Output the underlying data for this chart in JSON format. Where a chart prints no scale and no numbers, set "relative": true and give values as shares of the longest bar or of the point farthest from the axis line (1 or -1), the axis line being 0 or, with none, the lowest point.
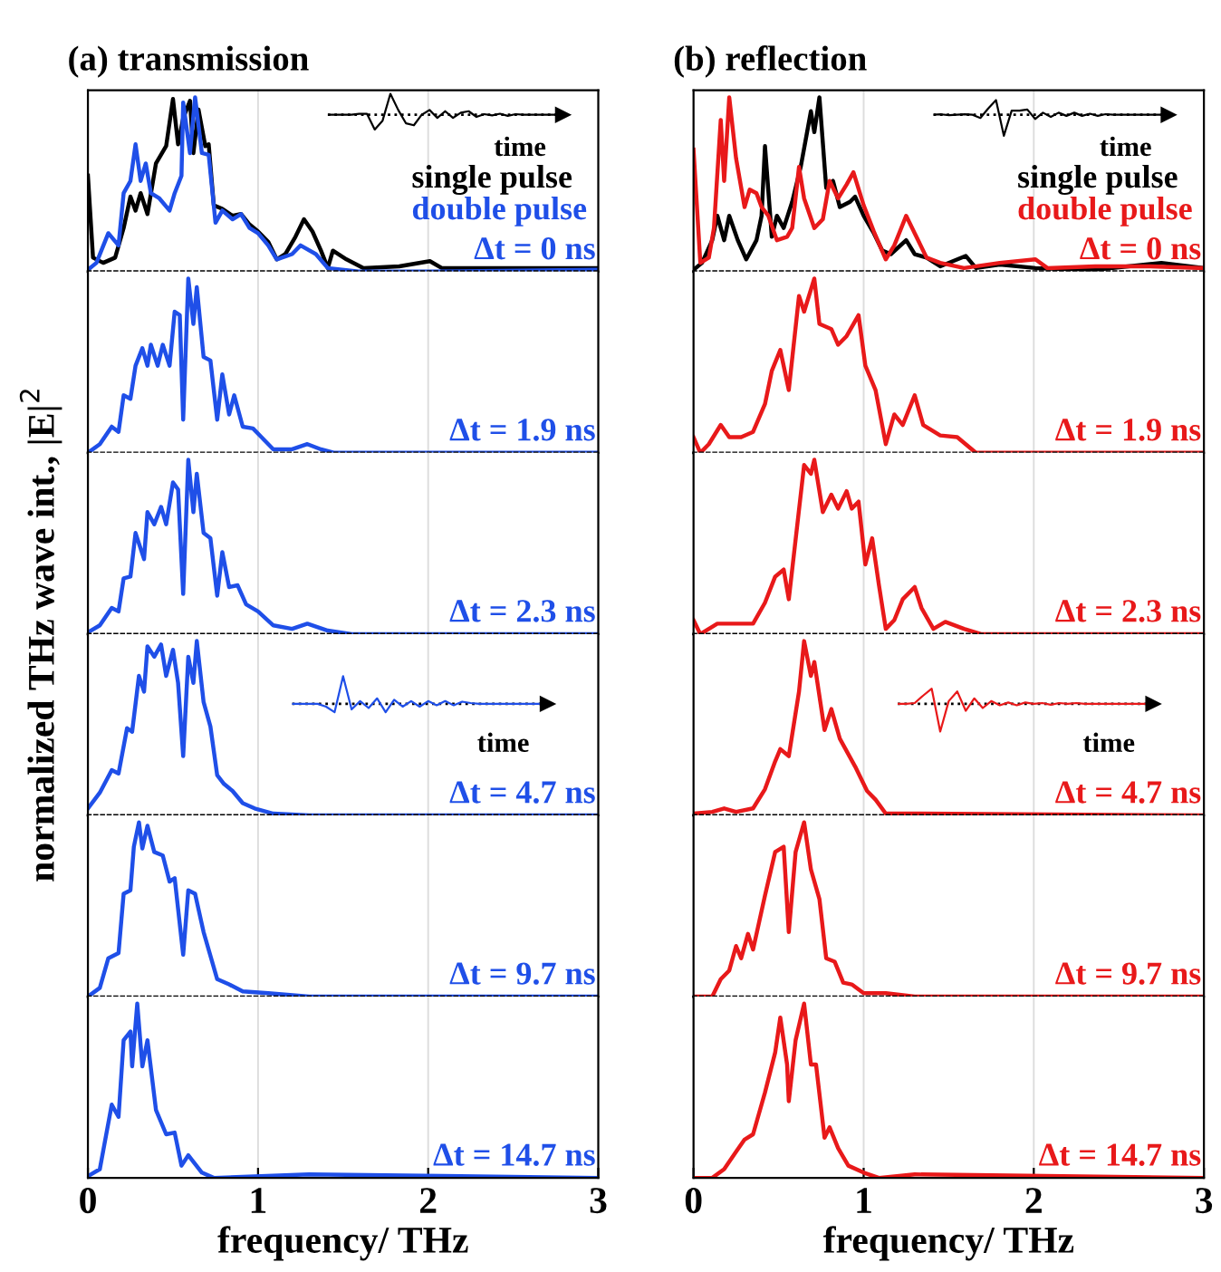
{
  "chart_data": [
    {
      "type": "line",
      "title": "(a) transmission",
      "relative": true,
      "xlim": [
        0,
        3
      ],
      "xticks": [
        0,
        1,
        2,
        3
      ],
      "grid": "x",
      "tick_labels": false,
      "legend": "right",
      "annotations": [
        "Δt = 0 ns"
      ],
      "series": [
        {
          "name": "single pulse",
          "color": "#000000",
          "x": [
            0,
            0.03,
            0.09,
            0.16,
            0.21,
            0.25,
            0.28,
            0.31,
            0.35,
            0.4,
            0.46,
            0.5,
            0.53,
            0.56,
            0.6,
            0.62,
            0.65,
            0.69,
            0.71,
            0.74,
            0.79,
            0.85,
            0.9,
            0.95,
            1.0,
            1.06,
            1.11,
            1.16,
            1.22,
            1.27,
            1.32,
            1.37,
            1.41,
            1.44,
            1.52,
            1.62,
            1.83,
            2.01,
            2.08,
            2.36,
            2.71,
            3.0
          ],
          "values": [
            0.55,
            0.08,
            0.05,
            0.08,
            0.25,
            0.43,
            0.35,
            0.45,
            0.33,
            0.62,
            0.72,
            0.99,
            0.73,
            0.88,
            0.98,
            0.68,
            0.93,
            0.72,
            0.73,
            0.38,
            0.36,
            0.32,
            0.33,
            0.27,
            0.23,
            0.17,
            0.07,
            0.1,
            0.2,
            0.3,
            0.23,
            0.12,
            0.02,
            0.12,
            0.07,
            0.02,
            0.03,
            0.06,
            0.02,
            0.02,
            0.02,
            0.02
          ]
        },
        {
          "name": "double pulse",
          "color": "#1f4fe8",
          "x": [
            0,
            0.05,
            0.12,
            0.18,
            0.21,
            0.25,
            0.28,
            0.31,
            0.34,
            0.37,
            0.42,
            0.48,
            0.51,
            0.55,
            0.56,
            0.6,
            0.63,
            0.67,
            0.71,
            0.75,
            0.79,
            0.85,
            0.9,
            0.95,
            1.0,
            1.06,
            1.11,
            1.2,
            1.25,
            1.34,
            1.41,
            1.59,
            2.01,
            3.0
          ],
          "values": [
            0.01,
            0.05,
            0.22,
            0.15,
            0.45,
            0.52,
            0.73,
            0.52,
            0.62,
            0.45,
            0.42,
            0.35,
            0.45,
            0.55,
            0.97,
            0.68,
            1.0,
            0.68,
            0.67,
            0.28,
            0.35,
            0.3,
            0.33,
            0.25,
            0.22,
            0.15,
            0.07,
            0.1,
            0.15,
            0.1,
            0.02,
            0.0,
            0.0,
            0.01
          ]
        }
      ]
    },
    {
      "type": "line",
      "relative": true,
      "xlabel": "time",
      "categories": [
        null,
        null,
        null,
        null,
        null,
        null,
        null,
        null,
        null,
        null,
        null,
        null,
        null,
        null,
        null,
        null,
        null,
        null,
        null,
        null,
        null,
        null,
        null,
        null,
        null,
        null,
        null,
        null,
        null,
        null,
        null
      ],
      "ref_lines": [
        {
          "axis": "y",
          "value": 0,
          "color": "#000000",
          "line_style": "dotted"
        }
      ],
      "series": [
        {
          "color": "#000000",
          "values": [
            0,
            0,
            0,
            0,
            0.05,
            0.05,
            -0.7,
            -0.28,
            1.0,
            0.23,
            -0.41,
            -0.5,
            0,
            0.23,
            -0.15,
            0.17,
            -0.15,
            0.1,
            0.17,
            -0.1,
            0.03,
            -0.03,
            0.05,
            -0.05,
            0.03,
            0,
            0,
            0,
            0,
            0,
            0
          ]
        }
      ]
    },
    {
      "type": "line",
      "relative": true,
      "xlim": [
        0,
        3
      ],
      "xticks": [
        0,
        1,
        2,
        3
      ],
      "grid": "x",
      "tick_labels": false,
      "annotations": [
        "Δt = 1.9 ns"
      ],
      "series": [
        {
          "color": "#1f4fe8",
          "x": [
            0,
            0.07,
            0.14,
            0.18,
            0.21,
            0.25,
            0.28,
            0.32,
            0.35,
            0.37,
            0.41,
            0.44,
            0.48,
            0.51,
            0.54,
            0.56,
            0.59,
            0.62,
            0.64,
            0.68,
            0.72,
            0.76,
            0.79,
            0.83,
            0.86,
            0.91,
            0.97,
            1.02,
            1.09,
            1.2,
            1.29,
            1.37,
            1.45,
            3.0
          ],
          "values": [
            0,
            0.05,
            0.15,
            0.12,
            0.33,
            0.31,
            0.5,
            0.6,
            0.5,
            0.62,
            0.5,
            0.62,
            0.5,
            0.81,
            0.79,
            0.19,
            1.0,
            0.74,
            0.95,
            0.55,
            0.53,
            0.19,
            0.45,
            0.22,
            0.33,
            0.15,
            0.14,
            0.09,
            0.02,
            0.02,
            0.05,
            0.02,
            0,
            0
          ]
        }
      ]
    },
    {
      "type": "line",
      "relative": true,
      "xlim": [
        0,
        3
      ],
      "xticks": [
        0,
        1,
        2,
        3
      ],
      "grid": "x",
      "tick_labels": false,
      "ylabel": "normalized THz wave int., |E|$^{2}$",
      "annotations": [
        "Δt = 2.3 ns"
      ],
      "series": [
        {
          "color": "#1f4fe8",
          "x": [
            0,
            0.07,
            0.14,
            0.18,
            0.21,
            0.25,
            0.28,
            0.33,
            0.35,
            0.39,
            0.43,
            0.46,
            0.5,
            0.53,
            0.56,
            0.59,
            0.62,
            0.64,
            0.68,
            0.72,
            0.76,
            0.79,
            0.83,
            0.88,
            0.93,
            1.0,
            1.09,
            1.2,
            1.29,
            1.41,
            1.55,
            3.0
          ],
          "values": [
            0.01,
            0.05,
            0.15,
            0.13,
            0.32,
            0.33,
            0.58,
            0.43,
            0.7,
            0.63,
            0.73,
            0.63,
            0.87,
            0.83,
            0.23,
            1.0,
            0.7,
            0.92,
            0.58,
            0.55,
            0.22,
            0.47,
            0.27,
            0.28,
            0.17,
            0.13,
            0.05,
            0.03,
            0.06,
            0.02,
            0,
            0
          ]
        }
      ]
    },
    {
      "type": "line",
      "relative": true,
      "xlim": [
        0,
        3
      ],
      "xticks": [
        0,
        1,
        2,
        3
      ],
      "grid": "x",
      "tick_labels": false,
      "annotations": [
        "Δt = 4.7 ns"
      ],
      "series": [
        {
          "color": "#1f4fe8",
          "x": [
            0,
            0.07,
            0.14,
            0.18,
            0.23,
            0.26,
            0.3,
            0.33,
            0.35,
            0.39,
            0.43,
            0.46,
            0.5,
            0.53,
            0.56,
            0.59,
            0.62,
            0.64,
            0.68,
            0.72,
            0.76,
            0.8,
            0.85,
            0.91,
            0.98,
            1.09,
            1.3,
            3.0
          ],
          "values": [
            0.04,
            0.13,
            0.26,
            0.24,
            0.5,
            0.48,
            0.8,
            0.71,
            0.97,
            0.91,
            0.98,
            0.8,
            0.95,
            0.76,
            0.34,
            0.91,
            0.76,
            1.0,
            0.65,
            0.51,
            0.23,
            0.18,
            0.14,
            0.07,
            0.04,
            0.01,
            0,
            0
          ]
        }
      ]
    },
    {
      "type": "line",
      "relative": true,
      "xlabel": "time",
      "categories": [
        null,
        null,
        null,
        null,
        null,
        null,
        null,
        null,
        null,
        null,
        null,
        null,
        null,
        null,
        null,
        null,
        null,
        null,
        null,
        null,
        null,
        null,
        null,
        null,
        null,
        null,
        null,
        null,
        null,
        null,
        null
      ],
      "ref_lines": [
        {
          "axis": "y",
          "value": 0,
          "color": "#000000",
          "line_style": "dotted"
        }
      ],
      "series": [
        {
          "color": "#1f4fe8",
          "values": [
            0,
            0,
            0,
            0,
            -0.1,
            -0.3,
            1.0,
            -0.2,
            0.1,
            -0.15,
            0.2,
            -0.3,
            0.15,
            -0.1,
            0.1,
            -0.1,
            0.1,
            -0.05,
            0.1,
            -0.05,
            0.08,
            0.03,
            0,
            0,
            0,
            0,
            0,
            0,
            0,
            0,
            0
          ]
        }
      ]
    },
    {
      "type": "line",
      "relative": true,
      "xlim": [
        0,
        3
      ],
      "xticks": [
        0,
        1,
        2,
        3
      ],
      "grid": "x",
      "tick_labels": false,
      "annotations": [
        "Δt = 9.7 ns"
      ],
      "series": [
        {
          "color": "#1f4fe8",
          "x": [
            0,
            0.07,
            0.12,
            0.18,
            0.21,
            0.25,
            0.27,
            0.3,
            0.32,
            0.35,
            0.39,
            0.44,
            0.48,
            0.51,
            0.56,
            0.59,
            0.63,
            0.68,
            0.76,
            0.83,
            0.91,
            1.06,
            1.3,
            3.0
          ],
          "values": [
            0,
            0.05,
            0.22,
            0.25,
            0.59,
            0.61,
            0.86,
            1.0,
            0.85,
            0.98,
            0.83,
            0.81,
            0.66,
            0.68,
            0.24,
            0.61,
            0.59,
            0.37,
            0.1,
            0.07,
            0.03,
            0.02,
            0,
            0
          ]
        }
      ]
    },
    {
      "type": "line",
      "relative": true,
      "xlim": [
        0,
        3
      ],
      "xticks": [
        0,
        1,
        2,
        3
      ],
      "grid": "x",
      "tick_labels": "x",
      "xlabel": "frequency/ THz",
      "annotations": [
        "Δt = 14.7 ns"
      ],
      "series": [
        {
          "color": "#1f4fe8",
          "x": [
            0,
            0.07,
            0.14,
            0.18,
            0.21,
            0.25,
            0.26,
            0.29,
            0.32,
            0.35,
            0.4,
            0.46,
            0.51,
            0.55,
            0.59,
            0.67,
            0.74,
            1.3,
            3.0
          ],
          "values": [
            0.01,
            0.05,
            0.42,
            0.35,
            0.79,
            0.84,
            0.64,
            1.0,
            0.64,
            0.79,
            0.39,
            0.25,
            0.26,
            0.07,
            0.13,
            0.03,
            0,
            0.02,
            0
          ]
        }
      ]
    },
    {
      "type": "line",
      "title": "(b) reflection",
      "relative": true,
      "xlim": [
        0,
        3
      ],
      "xticks": [
        0,
        1,
        2,
        3
      ],
      "grid": "x",
      "tick_labels": false,
      "legend": "right",
      "annotations": [
        "Δt = 0 ns"
      ],
      "series": [
        {
          "name": "single pulse",
          "color": "#000000",
          "x": [
            0,
            0.05,
            0.11,
            0.14,
            0.18,
            0.21,
            0.26,
            0.31,
            0.37,
            0.4,
            0.42,
            0.46,
            0.49,
            0.53,
            0.58,
            0.63,
            0.69,
            0.71,
            0.74,
            0.78,
            0.82,
            0.86,
            0.92,
            0.95,
            1.0,
            1.06,
            1.11,
            1.16,
            1.25,
            1.3,
            1.37,
            1.45,
            1.6,
            1.66,
            1.8,
            2.01,
            2.36,
            2.75,
            3.0
          ],
          "values": [
            0.01,
            0.05,
            0.18,
            0.32,
            0.18,
            0.32,
            0.18,
            0.07,
            0.18,
            0.32,
            0.72,
            0.2,
            0.32,
            0.25,
            0.4,
            0.6,
            0.92,
            0.8,
            1.0,
            0.48,
            0.52,
            0.37,
            0.4,
            0.43,
            0.32,
            0.22,
            0.12,
            0.1,
            0.18,
            0.1,
            0.08,
            0.03,
            0.09,
            0.02,
            0.04,
            0.02,
            0.01,
            0.05,
            0.02
          ]
        },
        {
          "name": "double pulse",
          "color": "#e8191a",
          "x": [
            0,
            0.04,
            0.09,
            0.12,
            0.16,
            0.18,
            0.21,
            0.25,
            0.3,
            0.33,
            0.37,
            0.4,
            0.44,
            0.49,
            0.55,
            0.58,
            0.62,
            0.65,
            0.71,
            0.76,
            0.8,
            0.85,
            0.9,
            0.94,
            1.0,
            1.06,
            1.13,
            1.18,
            1.25,
            1.3,
            1.37,
            1.45,
            1.59,
            1.8,
            2.01,
            2.08,
            2.36,
            2.68,
            3.0
          ],
          "values": [
            0.7,
            0.05,
            0.08,
            0.25,
            0.87,
            0.52,
            1.0,
            0.65,
            0.37,
            0.47,
            0.45,
            0.37,
            0.32,
            0.18,
            0.2,
            0.25,
            0.6,
            0.42,
            0.25,
            0.3,
            0.52,
            0.42,
            0.5,
            0.57,
            0.38,
            0.23,
            0.07,
            0.15,
            0.32,
            0.22,
            0.08,
            0.05,
            0.02,
            0.05,
            0.07,
            0.02,
            0.03,
            0.03,
            0.02
          ]
        }
      ]
    },
    {
      "type": "line",
      "relative": true,
      "xlabel": "time",
      "categories": [
        null,
        null,
        null,
        null,
        null,
        null,
        null,
        null,
        null,
        null,
        null,
        null,
        null,
        null,
        null,
        null,
        null,
        null,
        null,
        null,
        null,
        null,
        null,
        null,
        null,
        null,
        null,
        null,
        null,
        null,
        null
      ],
      "ref_lines": [
        {
          "axis": "y",
          "value": 0,
          "color": "#000000",
          "line_style": "dotted"
        }
      ],
      "series": [
        {
          "color": "#000000",
          "values": [
            0,
            0.02,
            -0.02,
            0,
            0.02,
            0,
            -0.15,
            0.3,
            0.7,
            -1.0,
            0.2,
            0.2,
            0.25,
            -0.2,
            0.1,
            -0.1,
            0.1,
            -0.05,
            0.1,
            -0.05,
            0.05,
            -0.05,
            0.03,
            0,
            0,
            0,
            0,
            0,
            0,
            0,
            0
          ]
        }
      ]
    },
    {
      "type": "line",
      "relative": true,
      "xlim": [
        0,
        3
      ],
      "xticks": [
        0,
        1,
        2,
        3
      ],
      "grid": "x",
      "tick_labels": false,
      "annotations": [
        "Δt = 1.9 ns"
      ],
      "series": [
        {
          "color": "#e8191a",
          "x": [
            0,
            0.04,
            0.09,
            0.16,
            0.21,
            0.28,
            0.35,
            0.42,
            0.46,
            0.51,
            0.56,
            0.62,
            0.65,
            0.71,
            0.74,
            0.81,
            0.85,
            0.9,
            0.97,
            1.01,
            1.07,
            1.13,
            1.18,
            1.23,
            1.3,
            1.35,
            1.45,
            1.55,
            1.66,
            3.0
          ],
          "values": [
            0.09,
            0,
            0.05,
            0.16,
            0.09,
            0.09,
            0.12,
            0.28,
            0.47,
            0.59,
            0.36,
            0.9,
            0.81,
            1.0,
            0.74,
            0.71,
            0.62,
            0.67,
            0.79,
            0.5,
            0.36,
            0.05,
            0.22,
            0.16,
            0.33,
            0.16,
            0.1,
            0.09,
            0,
            0
          ]
        }
      ]
    },
    {
      "type": "line",
      "relative": true,
      "xlim": [
        0,
        3
      ],
      "xticks": [
        0,
        1,
        2,
        3
      ],
      "grid": "x",
      "tick_labels": false,
      "annotations": [
        "Δt = 2.3 ns"
      ],
      "series": [
        {
          "color": "#e8191a",
          "x": [
            0,
            0.04,
            0.14,
            0.28,
            0.35,
            0.42,
            0.48,
            0.53,
            0.56,
            0.65,
            0.69,
            0.71,
            0.76,
            0.81,
            0.85,
            0.9,
            0.93,
            0.97,
            1.01,
            1.05,
            1.09,
            1.13,
            1.18,
            1.23,
            1.3,
            1.34,
            1.41,
            1.48,
            1.59,
            1.69,
            3.0
          ],
          "values": [
            0.08,
            0,
            0.06,
            0.06,
            0.06,
            0.18,
            0.33,
            0.37,
            0.2,
            0.97,
            0.92,
            1.0,
            0.7,
            0.8,
            0.72,
            0.82,
            0.72,
            0.76,
            0.4,
            0.55,
            0.28,
            0.03,
            0.08,
            0.2,
            0.27,
            0.15,
            0.03,
            0.07,
            0.03,
            0,
            0
          ]
        }
      ]
    },
    {
      "type": "line",
      "relative": true,
      "xlim": [
        0,
        3
      ],
      "xticks": [
        0,
        1,
        2,
        3
      ],
      "grid": "x",
      "tick_labels": false,
      "annotations": [
        "Δt = 4.7 ns"
      ],
      "series": [
        {
          "color": "#e8191a",
          "x": [
            0,
            0.11,
            0.18,
            0.25,
            0.35,
            0.42,
            0.48,
            0.51,
            0.56,
            0.62,
            0.65,
            0.69,
            0.71,
            0.77,
            0.81,
            0.86,
            0.95,
            1.02,
            1.07,
            1.13,
            1.3,
            3.0
          ],
          "values": [
            0.01,
            0.02,
            0.04,
            0.02,
            0.04,
            0.15,
            0.31,
            0.38,
            0.34,
            0.71,
            1.0,
            0.8,
            0.88,
            0.49,
            0.61,
            0.44,
            0.28,
            0.14,
            0.09,
            0.01,
            0.01,
            0
          ]
        }
      ]
    },
    {
      "type": "line",
      "relative": true,
      "xlabel": "time",
      "categories": [
        null,
        null,
        null,
        null,
        null,
        null,
        null,
        null,
        null,
        null,
        null,
        null,
        null,
        null,
        null,
        null,
        null,
        null,
        null,
        null,
        null,
        null,
        null,
        null,
        null,
        null,
        null,
        null,
        null,
        null,
        null
      ],
      "ref_lines": [
        {
          "axis": "y",
          "value": 0,
          "color": "#000000",
          "line_style": "dotted"
        }
      ],
      "series": [
        {
          "color": "#e8191a",
          "values": [
            0,
            0,
            0.03,
            0.3,
            0.55,
            -1.0,
            0.1,
            0.45,
            -0.25,
            0.2,
            -0.15,
            0.1,
            -0.05,
            0.05,
            -0.05,
            0.05,
            0,
            0.03,
            -0.03,
            0.03,
            0,
            0.03,
            0,
            0,
            0,
            0,
            0,
            0,
            0,
            0,
            0
          ]
        }
      ]
    },
    {
      "type": "line",
      "relative": true,
      "xlim": [
        0,
        3
      ],
      "xticks": [
        0,
        1,
        2,
        3
      ],
      "grid": "x",
      "tick_labels": false,
      "annotations": [
        "Δt = 9.7 ns"
      ],
      "series": [
        {
          "color": "#e8191a",
          "x": [
            0,
            0.11,
            0.16,
            0.21,
            0.25,
            0.28,
            0.32,
            0.35,
            0.42,
            0.48,
            0.53,
            0.56,
            0.6,
            0.65,
            0.69,
            0.74,
            0.78,
            0.83,
            0.88,
            0.93,
            1.0,
            1.13,
            1.3,
            3.0
          ],
          "values": [
            0,
            0,
            0.1,
            0.15,
            0.29,
            0.22,
            0.36,
            0.27,
            0.58,
            0.83,
            0.86,
            0.37,
            0.83,
            1.0,
            0.73,
            0.56,
            0.22,
            0.2,
            0.08,
            0.07,
            0.02,
            0.02,
            0,
            0
          ]
        }
      ]
    },
    {
      "type": "line",
      "relative": true,
      "xlim": [
        0,
        3
      ],
      "xticks": [
        0,
        1,
        2,
        3
      ],
      "grid": "x",
      "tick_labels": "x",
      "xlabel": "frequency/ THz",
      "annotations": [
        "Δt = 14.7 ns"
      ],
      "series": [
        {
          "color": "#e8191a",
          "x": [
            0,
            0.11,
            0.18,
            0.25,
            0.3,
            0.35,
            0.42,
            0.48,
            0.51,
            0.55,
            0.56,
            0.6,
            0.65,
            0.69,
            0.72,
            0.77,
            0.8,
            0.85,
            0.91,
            1.0,
            1.09,
            1.3,
            3.0
          ],
          "values": [
            0,
            0,
            0.05,
            0.15,
            0.22,
            0.25,
            0.49,
            0.72,
            0.92,
            0.65,
            0.44,
            0.79,
            1.0,
            0.65,
            0.65,
            0.23,
            0.29,
            0.17,
            0.07,
            0.03,
            0,
            0.02,
            0
          ]
        }
      ]
    }
  ]
}
